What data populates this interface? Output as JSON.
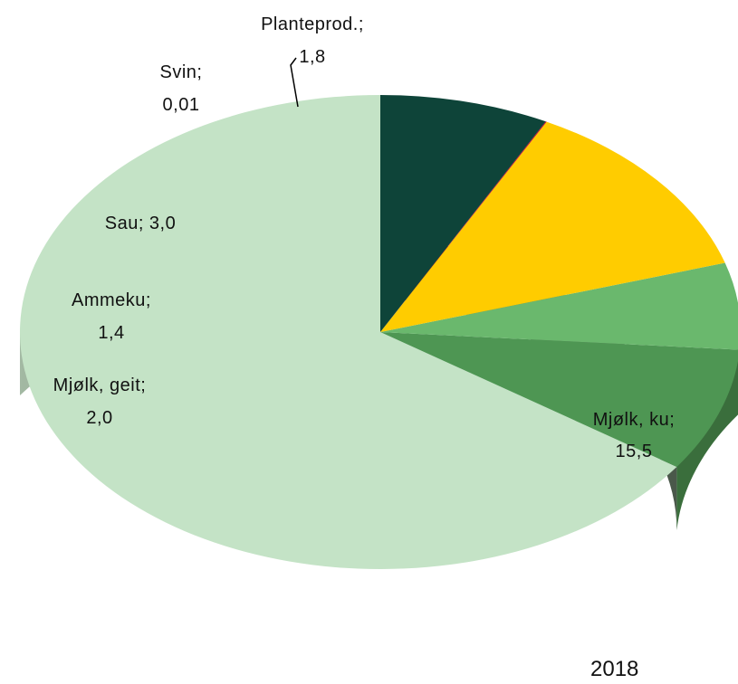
{
  "chart_data": {
    "type": "pie",
    "title": "",
    "slices": [
      {
        "label": "Mjølk, ku",
        "value": 15.5,
        "value_text": "15,5",
        "color": "#c4e3c6",
        "side": "#4f5e4f"
      },
      {
        "label": "Mjølk, geit",
        "value": 2.0,
        "value_text": "2,0",
        "color": "#4e9653",
        "side": "#3a6e3c"
      },
      {
        "label": "Ammeku",
        "value": 1.4,
        "value_text": "1,4",
        "color": "#6ab86d",
        "side": "#4f8f52"
      },
      {
        "label": "Sau",
        "value": 3.0,
        "value_text": "3,0",
        "color": "#ffcc00",
        "side": "#b38f00"
      },
      {
        "label": "Svin",
        "value": 0.01,
        "value_text": "0,01",
        "color": "#c9002a",
        "side": "#8a001d"
      },
      {
        "label": "Planteprod.",
        "value": 1.8,
        "value_text": "1,8",
        "color": "#0e4439",
        "side": "#082a23"
      }
    ],
    "legend": "none"
  },
  "footer": {
    "year": "2018"
  }
}
